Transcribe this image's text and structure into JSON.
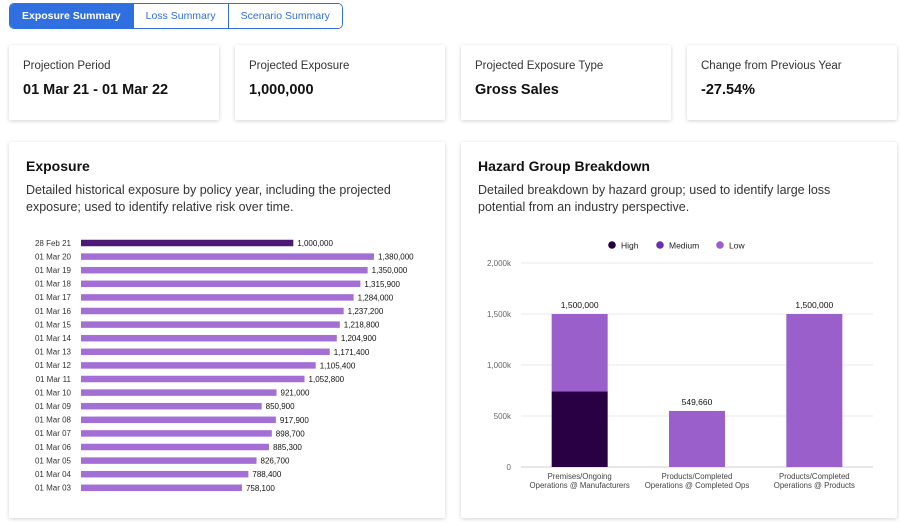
{
  "tabs": [
    {
      "label": "Exposure Summary",
      "active": true
    },
    {
      "label": "Loss Summary",
      "active": false
    },
    {
      "label": "Scenario Summary",
      "active": false
    }
  ],
  "stats": [
    {
      "label": "Projection Period",
      "value": "01 Mar 21 - 01 Mar 22"
    },
    {
      "label": "Projected Exposure",
      "value": "1,000,000"
    },
    {
      "label": "Projected Exposure Type",
      "value": "Gross Sales"
    },
    {
      "label": "Change from Previous Year",
      "value": "-27.54%"
    }
  ],
  "exposure_panel": {
    "title": "Exposure",
    "description": "Detailed historical exposure by policy year, including the projected exposure; used to identify relative risk over time."
  },
  "hazard_panel": {
    "title": "Hazard Group Breakdown",
    "description": "Detailed breakdown by hazard group; used to identify large loss potential from an industry perspective."
  },
  "colors": {
    "accent": "#2f6fe0",
    "dark_purple": "#4a1a75",
    "high": "#2a0045",
    "medium": "#6a2fb0",
    "low": "#9b5fcc",
    "bar_light": "#a46fd4"
  },
  "chart_data": [
    {
      "type": "bar",
      "orientation": "horizontal",
      "title": "Exposure",
      "categories": [
        "28 Feb 21",
        "01 Mar 20",
        "01 Mar 19",
        "01 Mar 18",
        "01 Mar 17",
        "01 Mar 16",
        "01 Mar 15",
        "01 Mar 14",
        "01 Mar 13",
        "01 Mar 12",
        "01 Mar 11",
        "01 Mar 10",
        "01 Mar 09",
        "01 Mar 08",
        "01 Mar 07",
        "01 Mar 06",
        "01 Mar 05",
        "01 Mar 04",
        "01 Mar 03"
      ],
      "values": [
        1000000,
        1380000,
        1350000,
        1315900,
        1284000,
        1237200,
        1218800,
        1204900,
        1171400,
        1105400,
        1052800,
        921000,
        850900,
        917900,
        898700,
        885300,
        826700,
        788400,
        758100
      ],
      "value_labels": [
        "1,000,000",
        "1,380,000",
        "1,350,000",
        "1,315,900",
        "1,284,000",
        "1,237,200",
        "1,218,800",
        "1,204,900",
        "1,171,400",
        "1,105,400",
        "1,052,800",
        "921,000",
        "850,900",
        "917,900",
        "898,700",
        "885,300",
        "826,700",
        "788,400",
        "758,100"
      ],
      "highlight_index": 0,
      "xlim": [
        0,
        1380000
      ]
    },
    {
      "type": "bar",
      "stacked": true,
      "title": "Hazard Group Breakdown",
      "categories": [
        [
          "Premises/Ongoing",
          "Operations @ Manufacturers"
        ],
        [
          "Products/Completed",
          "Operations @ Completed Ops"
        ],
        [
          "Products/Completed",
          "Operations @ Products"
        ]
      ],
      "series": [
        {
          "name": "High",
          "values": [
            740000,
            0,
            0
          ]
        },
        {
          "name": "Medium",
          "values": [
            0,
            0,
            0
          ]
        },
        {
          "name": "Low",
          "values": [
            760000,
            549660,
            1500000
          ]
        }
      ],
      "totals": [
        "1,500,000",
        "549,660",
        "1,500,000"
      ],
      "y_ticks": [
        "0",
        "500k",
        "1,000k",
        "1,500k",
        "2,000k"
      ],
      "ylim": [
        0,
        2000000
      ],
      "legend_position": "top-center"
    }
  ]
}
